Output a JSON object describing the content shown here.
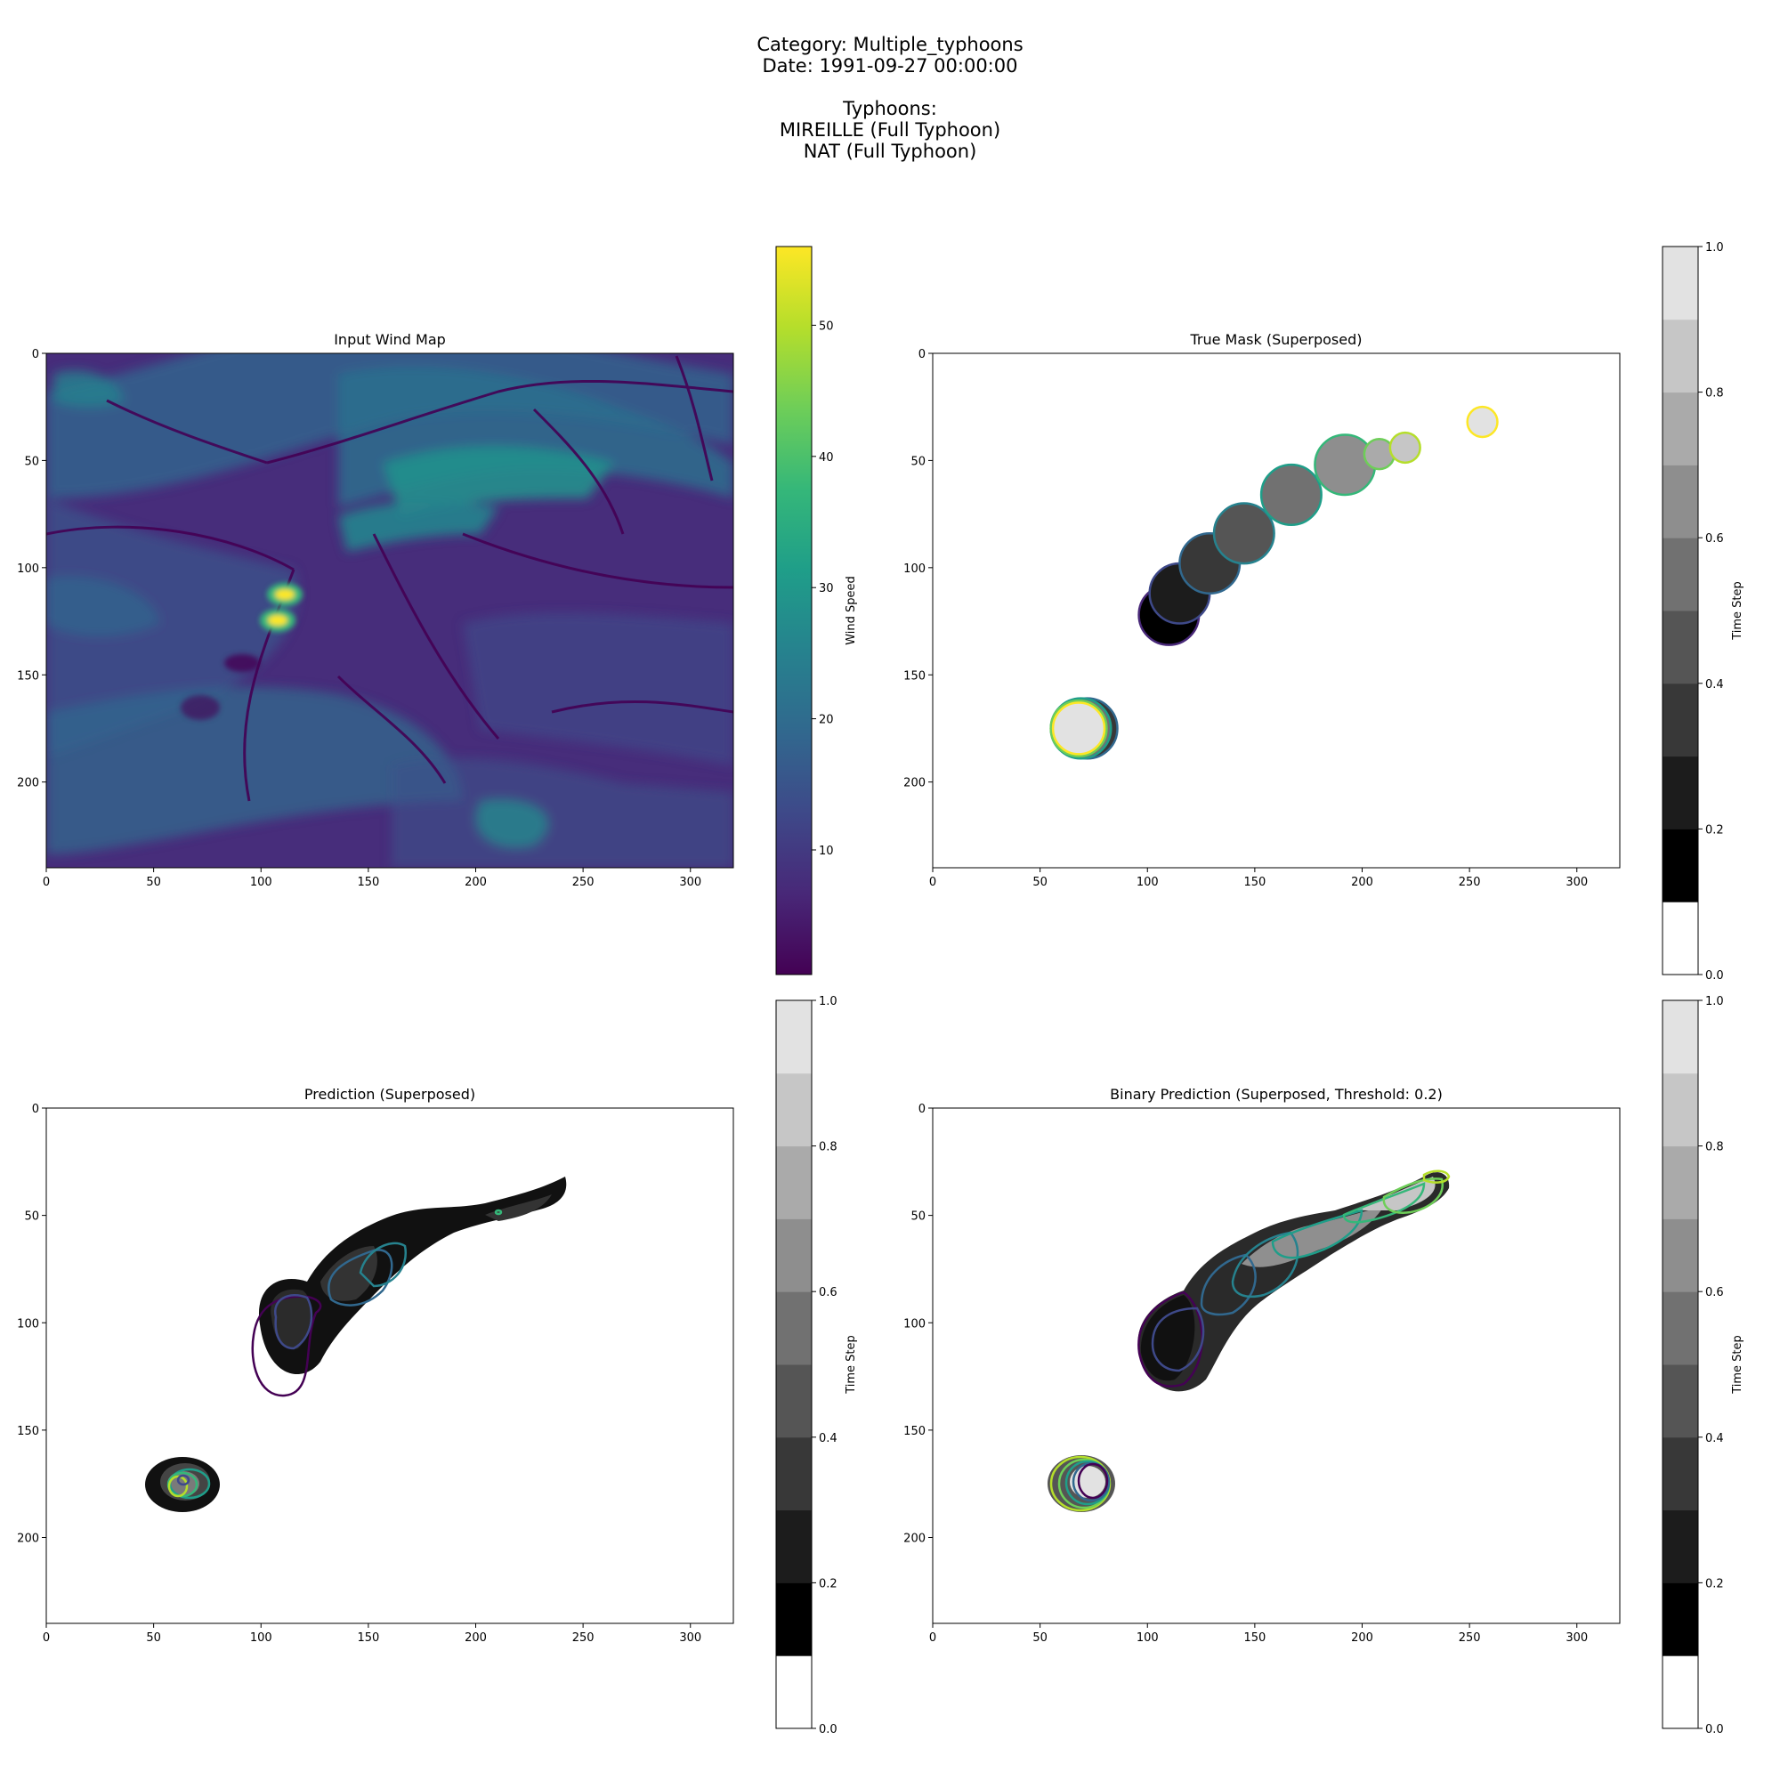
{
  "figure": {
    "category_line": "Category: Multiple_typhoons",
    "date_line": "Date: 1991-09-27 00:00:00",
    "typhoons_heading": "Typhoons:",
    "typhoons": [
      "MIREILLE (Full Typhoon)",
      "NAT (Full Typhoon)"
    ]
  },
  "colors": {
    "viridis": [
      "#440154",
      "#482878",
      "#3e4989",
      "#31688e",
      "#26828e",
      "#1f9e89",
      "#35b779",
      "#6ece58",
      "#b5de2b",
      "#fde725"
    ],
    "gray_steps": [
      "#ffffff",
      "#000000",
      "#1c1c1c",
      "#383838",
      "#555555",
      "#717171",
      "#8e8e8e",
      "#aaaaaa",
      "#c6c6c6",
      "#e2e2e2"
    ]
  },
  "chart_data": [
    {
      "type": "heatmap",
      "title": "Input Wind Map",
      "x_ticks": [
        0,
        50,
        100,
        150,
        200,
        250,
        300
      ],
      "y_ticks": [
        0,
        50,
        100,
        150,
        200
      ],
      "xlim": [
        0,
        320
      ],
      "ylim": [
        240,
        0
      ],
      "colorbar": {
        "label": "Wind Speed",
        "min": 0.5,
        "max": 56,
        "ticks": [
          10,
          20,
          30,
          40,
          50
        ],
        "cmap": "viridis"
      },
      "high_wind_features": [
        {
          "x": 115,
          "y": 115,
          "value": 55
        },
        {
          "x": 110,
          "y": 126,
          "value": 54
        },
        {
          "x": 240,
          "y": 45,
          "value": 30
        },
        {
          "x": 160,
          "y": 80,
          "value": 29
        }
      ]
    },
    {
      "type": "heatmap",
      "title": "True Mask (Superposed)",
      "x_ticks": [
        0,
        50,
        100,
        150,
        200,
        250,
        300
      ],
      "y_ticks": [
        0,
        50,
        100,
        150,
        200
      ],
      "xlim": [
        0,
        320
      ],
      "ylim": [
        240,
        0
      ],
      "colorbar": {
        "label": "Time Step",
        "min": 0.0,
        "max": 1.0,
        "ticks": [
          0.0,
          0.2,
          0.4,
          0.6,
          0.8,
          1.0
        ],
        "levels": 10
      },
      "masks": [
        {
          "x": 110,
          "y": 122,
          "r": 14,
          "t": 0.1
        },
        {
          "x": 115,
          "y": 112,
          "r": 14,
          "t": 0.2
        },
        {
          "x": 129,
          "y": 98,
          "r": 14,
          "t": 0.3
        },
        {
          "x": 145,
          "y": 84,
          "r": 14,
          "t": 0.4
        },
        {
          "x": 167,
          "y": 66,
          "r": 14,
          "t": 0.5
        },
        {
          "x": 192,
          "y": 52,
          "r": 14,
          "t": 0.6
        },
        {
          "x": 208,
          "y": 47,
          "r": 7,
          "t": 0.7
        },
        {
          "x": 220,
          "y": 44,
          "r": 7,
          "t": 0.8
        },
        {
          "x": 256,
          "y": 32,
          "r": 7,
          "t": 0.9
        },
        {
          "x": 72,
          "y": 175,
          "r": 14,
          "t": 0.3
        },
        {
          "x": 69,
          "y": 175,
          "r": 14,
          "t": 0.5
        },
        {
          "x": 68,
          "y": 175,
          "r": 13,
          "t": 0.7
        },
        {
          "x": 68,
          "y": 175,
          "r": 12,
          "t": 0.95
        }
      ]
    },
    {
      "type": "heatmap",
      "title": "Prediction (Superposed)",
      "x_ticks": [
        0,
        50,
        100,
        150,
        200,
        250,
        300
      ],
      "y_ticks": [
        0,
        50,
        100,
        150,
        200
      ],
      "xlim": [
        0,
        320
      ],
      "ylim": [
        240,
        0
      ],
      "colorbar": {
        "label": "Time Step",
        "min": 0.0,
        "max": 1.0,
        "ticks": [
          0.0,
          0.2,
          0.4,
          0.6,
          0.8,
          1.0
        ],
        "levels": 10
      }
    },
    {
      "type": "heatmap",
      "title": "Binary Prediction (Superposed, Threshold: 0.2)",
      "x_ticks": [
        0,
        50,
        100,
        150,
        200,
        250,
        300
      ],
      "y_ticks": [
        0,
        50,
        100,
        150,
        200
      ],
      "xlim": [
        0,
        320
      ],
      "ylim": [
        240,
        0
      ],
      "colorbar": {
        "label": "Time Step",
        "min": 0.0,
        "max": 1.0,
        "ticks": [
          0.0,
          0.2,
          0.4,
          0.6,
          0.8,
          1.0
        ],
        "levels": 10
      }
    }
  ]
}
